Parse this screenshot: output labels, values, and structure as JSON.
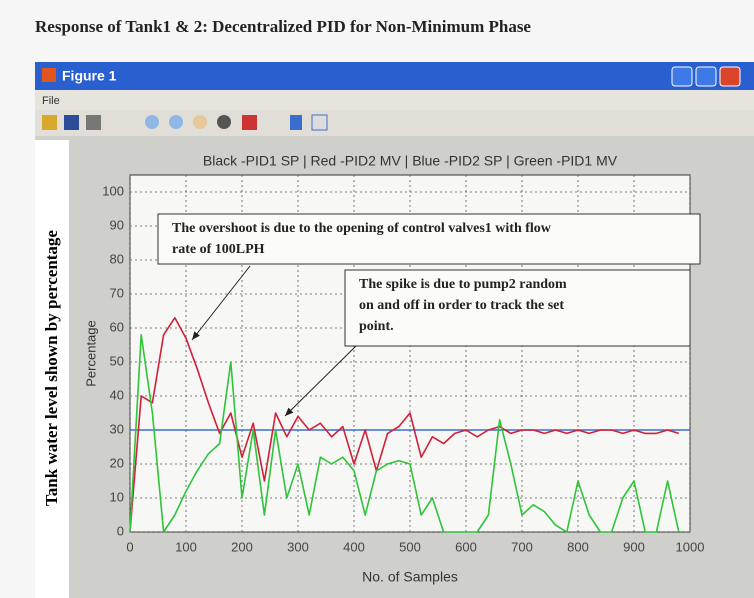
{
  "page_title": "Response of Tank1 & 2: Decentralized PID for Non-Minimum Phase",
  "window": {
    "title": "Figure 1",
    "menu": [
      "File"
    ]
  },
  "side_label": "Tank water level shown by percentage",
  "chart_data": {
    "type": "line",
    "title": "Black -PID1 SP | Red -PID2 MV | Blue -PID2 SP | Green -PID1 MV",
    "xlabel": "No. of Samples",
    "ylabel": "Percentage",
    "xlim": [
      0,
      1000
    ],
    "ylim": [
      0,
      105
    ],
    "xticks": [
      0,
      100,
      200,
      300,
      400,
      500,
      600,
      700,
      800,
      900,
      1000
    ],
    "yticks": [
      0,
      10,
      20,
      30,
      40,
      50,
      60,
      70,
      80,
      90,
      100
    ],
    "grid": true,
    "series": [
      {
        "color": "#3a6fd0",
        "x": [
          0,
          1000
        ],
        "values": [
          30,
          30
        ]
      },
      {
        "color": "#d0203a",
        "x": [
          0,
          20,
          40,
          60,
          80,
          100,
          120,
          140,
          160,
          180,
          200,
          220,
          240,
          260,
          280,
          300,
          320,
          340,
          360,
          380,
          400,
          420,
          440,
          460,
          480,
          500,
          520,
          540,
          560,
          580,
          600,
          620,
          640,
          660,
          680,
          700,
          720,
          740,
          760,
          780,
          800,
          820,
          840,
          860,
          880,
          900,
          920,
          940,
          960,
          980
        ],
        "values": [
          0,
          40,
          38,
          58,
          63,
          57,
          48,
          38,
          29,
          35,
          22,
          32,
          15,
          35,
          28,
          34,
          30,
          32,
          28,
          31,
          20,
          30,
          18,
          29,
          31,
          35,
          22,
          28,
          26,
          29,
          30,
          28,
          30,
          31,
          29,
          30,
          30,
          29,
          30,
          29,
          30,
          29,
          30,
          30,
          29,
          30,
          29,
          29,
          30,
          29
        ]
      },
      {
        "color": "#2fc43a",
        "x": [
          0,
          20,
          40,
          60,
          80,
          100,
          120,
          140,
          160,
          180,
          200,
          220,
          240,
          260,
          280,
          300,
          320,
          340,
          360,
          380,
          400,
          420,
          440,
          460,
          480,
          500,
          520,
          540,
          560,
          580,
          600,
          620,
          640,
          660,
          680,
          700,
          720,
          740,
          760,
          780,
          800,
          820,
          840,
          860,
          880,
          900,
          920,
          940,
          960,
          980
        ],
        "values": [
          0,
          58,
          35,
          0,
          5,
          12,
          18,
          23,
          26,
          50,
          10,
          30,
          5,
          30,
          10,
          20,
          5,
          22,
          20,
          22,
          18,
          5,
          18,
          20,
          21,
          20,
          5,
          10,
          0,
          0,
          0,
          0,
          5,
          33,
          20,
          5,
          8,
          6,
          2,
          0,
          15,
          5,
          0,
          0,
          10,
          15,
          0,
          0,
          15,
          0
        ]
      }
    ],
    "annotations": [
      [
        "The overshoot is due to the opening of control valves1 with flow",
        "rate of 100LPH"
      ],
      [
        "The spike is due to pump2 random",
        "on and off in order to track the set",
        "point."
      ]
    ]
  }
}
